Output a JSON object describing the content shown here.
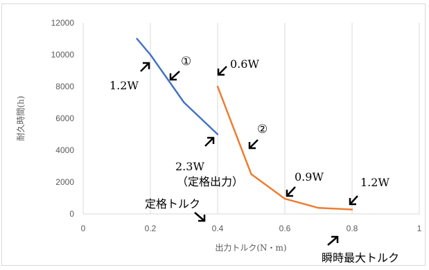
{
  "chart_data": {
    "type": "line",
    "title": "",
    "xlabel": "出力トルク(N・m)",
    "ylabel": "耐久時間(h)",
    "xlim": [
      0,
      1
    ],
    "ylim": [
      0,
      12000
    ],
    "x_ticks": [
      "0",
      "0.2",
      "0.4",
      "0.6",
      "0.8",
      "1"
    ],
    "y_ticks": [
      "0",
      "2000",
      "4000",
      "6000",
      "8000",
      "10000",
      "12000"
    ],
    "grid": "vertical",
    "legend": "none",
    "series": [
      {
        "color": "#4472c4",
        "points": [
          [
            0.16,
            11000
          ],
          [
            0.2,
            10000
          ],
          [
            0.3,
            7000
          ],
          [
            0.4,
            5000
          ]
        ]
      },
      {
        "color": "#ed7d31",
        "points": [
          [
            0.4,
            8000
          ],
          [
            0.5,
            2500
          ],
          [
            0.6,
            950
          ],
          [
            0.7,
            380
          ],
          [
            0.8,
            280
          ]
        ]
      }
    ],
    "annotations": {
      "curve1_marker": "①",
      "curve2_marker": "②",
      "w_1_2_top": "1.2W",
      "w_0_6": "0.6W",
      "w_2_3": "2.3W",
      "rated_output": "（定格出力）",
      "w_0_9": "0.9W",
      "w_1_2_bottom": "1.2W",
      "rated_torque": "定格トルク",
      "max_instant_torque": "瞬時最大トルク"
    }
  }
}
